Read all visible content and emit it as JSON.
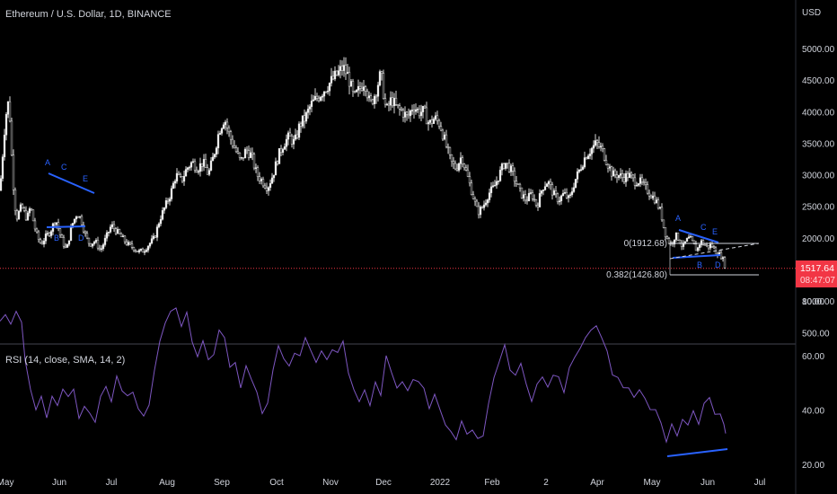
{
  "header": {
    "title": "Ethereum / U.S. Dollar, 1D, BINANCE",
    "currency": "USD"
  },
  "rsi_label": "RSI (14, close, SMA, 14, 2)",
  "current_price": {
    "value": "1517.64",
    "countdown": "08:47:07",
    "color": "#f23645"
  },
  "fib_levels": [
    {
      "label": "0(1912.68)",
      "price": 1912.68
    },
    {
      "label": "0.382(1426.80)",
      "price": 1426.8
    }
  ],
  "pattern_letters_left": [
    "A",
    "C",
    "E",
    "B",
    "D"
  ],
  "pattern_letters_right": [
    "A",
    "C",
    "E",
    "B",
    "D"
  ],
  "chart_data": [
    {
      "type": "candlestick",
      "title": "Ethereum / U.S. Dollar, 1D, BINANCE",
      "ylabel": "USD",
      "y_ticks": [
        "500.00",
        "1000.00",
        "1500.00",
        "2000.00",
        "2500.00",
        "3000.00",
        "3500.00",
        "4000.00",
        "4500.00",
        "5000.00"
      ],
      "x_ticks": [
        "May",
        "Jun",
        "Jul",
        "Aug",
        "Sep",
        "Oct",
        "Nov",
        "Dec",
        "2022",
        "Feb",
        "2",
        "Apr",
        "May",
        "Jun",
        "Jul"
      ],
      "ylim": [
        300,
        5400
      ],
      "close_path": [
        [
          0,
          2750
        ],
        [
          6,
          3900
        ],
        [
          10,
          4200
        ],
        [
          14,
          3000
        ],
        [
          18,
          2300
        ],
        [
          24,
          2500
        ],
        [
          30,
          2300
        ],
        [
          34,
          2500
        ],
        [
          38,
          2200
        ],
        [
          42,
          2000
        ],
        [
          46,
          1900
        ],
        [
          50,
          2000
        ],
        [
          56,
          2100
        ],
        [
          62,
          2300
        ],
        [
          68,
          2000
        ],
        [
          74,
          1800
        ],
        [
          80,
          2200
        ],
        [
          86,
          2400
        ],
        [
          90,
          2300
        ],
        [
          96,
          2000
        ],
        [
          100,
          1900
        ],
        [
          106,
          1950
        ],
        [
          112,
          1800
        ],
        [
          118,
          2000
        ],
        [
          124,
          2200
        ],
        [
          130,
          2100
        ],
        [
          136,
          2000
        ],
        [
          142,
          1900
        ],
        [
          148,
          1850
        ],
        [
          154,
          1780
        ],
        [
          160,
          1800
        ],
        [
          166,
          1900
        ],
        [
          172,
          2000
        ],
        [
          178,
          2300
        ],
        [
          184,
          2500
        ],
        [
          190,
          2700
        ],
        [
          196,
          3000
        ],
        [
          202,
          2900
        ],
        [
          208,
          3100
        ],
        [
          214,
          3200
        ],
        [
          220,
          3100
        ],
        [
          226,
          3200
        ],
        [
          232,
          3000
        ],
        [
          238,
          3300
        ],
        [
          244,
          3700
        ],
        [
          250,
          3900
        ],
        [
          256,
          3600
        ],
        [
          262,
          3400
        ],
        [
          268,
          3200
        ],
        [
          274,
          3400
        ],
        [
          280,
          3300
        ],
        [
          286,
          3000
        ],
        [
          292,
          2900
        ],
        [
          298,
          2800
        ],
        [
          304,
          3000
        ],
        [
          310,
          3300
        ],
        [
          316,
          3500
        ],
        [
          322,
          3600
        ],
        [
          328,
          3500
        ],
        [
          334,
          3800
        ],
        [
          340,
          3900
        ],
        [
          346,
          4100
        ],
        [
          352,
          4200
        ],
        [
          358,
          4300
        ],
        [
          364,
          4400
        ],
        [
          370,
          4500
        ],
        [
          376,
          4600
        ],
        [
          382,
          4700
        ],
        [
          388,
          4550
        ],
        [
          394,
          4200
        ],
        [
          400,
          4350
        ],
        [
          406,
          4500
        ],
        [
          412,
          4100
        ],
        [
          418,
          4300
        ],
        [
          424,
          4600
        ],
        [
          430,
          4000
        ],
        [
          436,
          4200
        ],
        [
          442,
          4050
        ],
        [
          448,
          4000
        ],
        [
          454,
          3900
        ],
        [
          460,
          4100
        ],
        [
          466,
          4000
        ],
        [
          472,
          4000
        ],
        [
          478,
          3800
        ],
        [
          484,
          3900
        ],
        [
          490,
          3800
        ],
        [
          496,
          3500
        ],
        [
          502,
          3200
        ],
        [
          508,
          3100
        ],
        [
          514,
          3300
        ],
        [
          520,
          3000
        ],
        [
          526,
          2700
        ],
        [
          532,
          2400
        ],
        [
          538,
          2500
        ],
        [
          544,
          2700
        ],
        [
          550,
          2800
        ],
        [
          556,
          3000
        ],
        [
          562,
          3200
        ],
        [
          568,
          3100
        ],
        [
          574,
          2900
        ],
        [
          580,
          2700
        ],
        [
          586,
          2600
        ],
        [
          592,
          2700
        ],
        [
          598,
          2500
        ],
        [
          604,
          2800
        ],
        [
          610,
          2900
        ],
        [
          616,
          2700
        ],
        [
          622,
          2600
        ],
        [
          628,
          2700
        ],
        [
          634,
          2600
        ],
        [
          640,
          2900
        ],
        [
          646,
          3100
        ],
        [
          652,
          3300
        ],
        [
          658,
          3400
        ],
        [
          664,
          3500
        ],
        [
          670,
          3400
        ],
        [
          676,
          3200
        ],
        [
          682,
          3000
        ],
        [
          688,
          3000
        ],
        [
          694,
          2950
        ],
        [
          700,
          3000
        ],
        [
          706,
          2900
        ],
        [
          712,
          2900
        ],
        [
          718,
          2800
        ],
        [
          724,
          2700
        ],
        [
          730,
          2600
        ],
        [
          736,
          2400
        ],
        [
          740,
          2100
        ],
        [
          744,
          1950
        ],
        [
          748,
          1900
        ],
        [
          752,
          2050
        ],
        [
          756,
          1980
        ],
        [
          760,
          1850
        ],
        [
          764,
          1950
        ],
        [
          768,
          2000
        ],
        [
          772,
          1900
        ],
        [
          776,
          1800
        ],
        [
          780,
          1950
        ],
        [
          784,
          1900
        ],
        [
          788,
          1850
        ],
        [
          792,
          1900
        ],
        [
          796,
          1800
        ],
        [
          800,
          1750
        ],
        [
          804,
          1700
        ],
        [
          808,
          1517.64
        ]
      ]
    },
    {
      "type": "line",
      "title": "RSI (14, close, SMA, 14, 2)",
      "y_ticks": [
        "20.00",
        "40.00",
        "60.00",
        "80.00"
      ],
      "ylim": [
        18,
        85
      ],
      "series": [
        {
          "values": [
            [
              0,
              72
            ],
            [
              6,
              75
            ],
            [
              12,
              70
            ],
            [
              18,
              77
            ],
            [
              24,
              74
            ],
            [
              28,
              60
            ],
            [
              34,
              48
            ],
            [
              40,
              40
            ],
            [
              46,
              46
            ],
            [
              52,
              38
            ],
            [
              58,
              46
            ],
            [
              64,
              40
            ],
            [
              70,
              48
            ],
            [
              76,
              44
            ],
            [
              82,
              48
            ],
            [
              88,
              38
            ],
            [
              94,
              42
            ],
            [
              100,
              40
            ],
            [
              106,
              37
            ],
            [
              112,
              45
            ],
            [
              118,
              48
            ],
            [
              124,
              43
            ],
            [
              130,
              52
            ],
            [
              136,
              48
            ],
            [
              142,
              44
            ],
            [
              148,
              48
            ],
            [
              154,
              41
            ],
            [
              160,
              38
            ],
            [
              166,
              42
            ],
            [
              172,
              55
            ],
            [
              178,
              64
            ],
            [
              184,
              70
            ],
            [
              190,
              75
            ],
            [
              196,
              78
            ],
            [
              202,
              72
            ],
            [
              208,
              74
            ],
            [
              214,
              65
            ],
            [
              220,
              60
            ],
            [
              226,
              66
            ],
            [
              232,
              58
            ],
            [
              238,
              62
            ],
            [
              244,
              70
            ],
            [
              250,
              68
            ],
            [
              256,
              55
            ],
            [
              262,
              58
            ],
            [
              268,
              48
            ],
            [
              274,
              56
            ],
            [
              280,
              50
            ],
            [
              286,
              48
            ],
            [
              292,
              40
            ],
            [
              298,
              44
            ],
            [
              304,
              55
            ],
            [
              310,
              62
            ],
            [
              316,
              58
            ],
            [
              322,
              55
            ],
            [
              328,
              62
            ],
            [
              334,
              58
            ],
            [
              340,
              66
            ],
            [
              346,
              62
            ],
            [
              352,
              58
            ],
            [
              358,
              62
            ],
            [
              364,
              60
            ],
            [
              370,
              63
            ],
            [
              376,
              61
            ],
            [
              382,
              65
            ],
            [
              388,
              55
            ],
            [
              394,
              48
            ],
            [
              400,
              44
            ],
            [
              406,
              48
            ],
            [
              412,
              42
            ],
            [
              418,
              50
            ],
            [
              424,
              46
            ],
            [
              430,
              58
            ],
            [
              436,
              52
            ],
            [
              442,
              48
            ],
            [
              448,
              50
            ],
            [
              454,
              46
            ],
            [
              460,
              52
            ],
            [
              466,
              50
            ],
            [
              472,
              48
            ],
            [
              478,
              42
            ],
            [
              484,
              46
            ],
            [
              490,
              40
            ],
            [
              496,
              35
            ],
            [
              502,
              32
            ],
            [
              508,
              30
            ],
            [
              514,
              36
            ],
            [
              520,
              32
            ],
            [
              526,
              34
            ],
            [
              532,
              28
            ],
            [
              538,
              32
            ],
            [
              544,
              42
            ],
            [
              550,
              50
            ],
            [
              556,
              58
            ],
            [
              562,
              62
            ],
            [
              568,
              56
            ],
            [
              574,
              52
            ],
            [
              580,
              56
            ],
            [
              586,
              48
            ],
            [
              592,
              44
            ],
            [
              598,
              50
            ],
            [
              604,
              52
            ],
            [
              610,
              48
            ],
            [
              616,
              54
            ],
            [
              622,
              52
            ],
            [
              628,
              48
            ],
            [
              634,
              55
            ],
            [
              640,
              60
            ],
            [
              646,
              64
            ],
            [
              652,
              68
            ],
            [
              658,
              70
            ],
            [
              664,
              72
            ],
            [
              670,
              68
            ],
            [
              676,
              60
            ],
            [
              682,
              52
            ],
            [
              688,
              50
            ],
            [
              694,
              48
            ],
            [
              700,
              50
            ],
            [
              706,
              46
            ],
            [
              712,
              47
            ],
            [
              718,
              44
            ],
            [
              724,
              42
            ],
            [
              730,
              40
            ],
            [
              736,
              34
            ],
            [
              742,
              30
            ],
            [
              748,
              34
            ],
            [
              754,
              32
            ],
            [
              760,
              36
            ],
            [
              766,
              34
            ],
            [
              772,
              38
            ],
            [
              778,
              36
            ],
            [
              784,
              42
            ],
            [
              790,
              44
            ],
            [
              796,
              40
            ],
            [
              802,
              40
            ],
            [
              806,
              34
            ],
            [
              808,
              30
            ]
          ]
        }
      ]
    }
  ]
}
